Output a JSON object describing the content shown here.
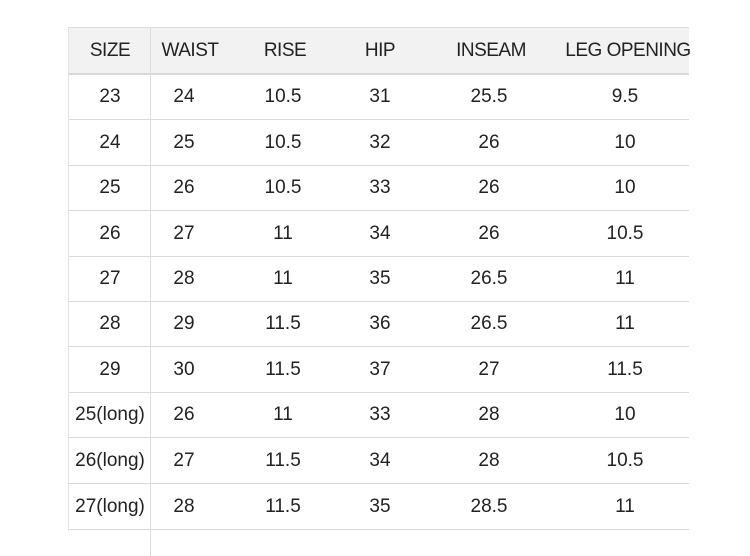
{
  "table": {
    "headers": [
      "SIZE",
      "WAIST",
      "RISE",
      "HIP",
      "INSEAM",
      "LEG OPENING"
    ],
    "rows": [
      [
        "23",
        "24",
        "10.5",
        "31",
        "25.5",
        "9.5"
      ],
      [
        "24",
        "25",
        "10.5",
        "32",
        "26",
        "10"
      ],
      [
        "25",
        "26",
        "10.5",
        "33",
        "26",
        "10"
      ],
      [
        "26",
        "27",
        "11",
        "34",
        "26",
        "10.5"
      ],
      [
        "27",
        "28",
        "11",
        "35",
        "26.5",
        "11"
      ],
      [
        "28",
        "29",
        "11.5",
        "36",
        "26.5",
        "11"
      ],
      [
        "29",
        "30",
        "11.5",
        "37",
        "27",
        "11.5"
      ],
      [
        "25(long)",
        "26",
        "11",
        "33",
        "28",
        "10"
      ],
      [
        "26(long)",
        "27",
        "11.5",
        "34",
        "28",
        "10.5"
      ],
      [
        "27(long)",
        "28",
        "11.5",
        "35",
        "28.5",
        "11"
      ]
    ]
  },
  "colors": {
    "header_bg": "#f2f2f2",
    "grid": "#d9d9d9",
    "text": "#222222"
  }
}
